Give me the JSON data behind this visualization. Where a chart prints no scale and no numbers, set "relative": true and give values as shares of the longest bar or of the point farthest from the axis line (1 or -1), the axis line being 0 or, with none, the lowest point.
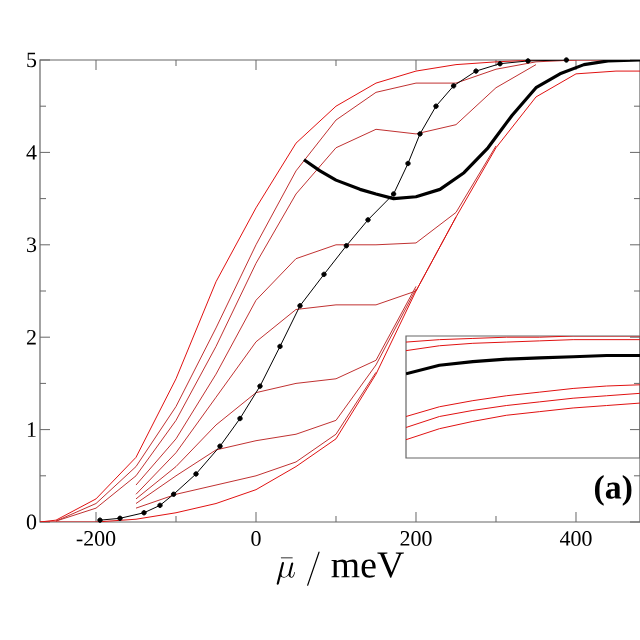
{
  "chart_data": [
    {
      "type": "line",
      "xlabel": "\\bar{\\mu}\\ /\\ \\mathrm{meV}",
      "xlim": [
        -270,
        480
      ],
      "ylim": [
        0,
        5
      ],
      "xticks": [
        -200,
        0,
        200,
        400
      ],
      "yticks": [
        0,
        1,
        2,
        3,
        4,
        5
      ],
      "x": [
        -270,
        -250,
        -200,
        -150,
        -100,
        -50,
        0,
        50,
        100,
        150,
        200,
        250,
        300,
        350,
        400,
        450,
        480
      ],
      "annotations": [
        "**(a)**"
      ],
      "series": [
        {
          "color": "#e01010",
          "values": [
            0,
            0.02,
            0.25,
            0.7,
            1.55,
            2.6,
            3.4,
            4.1,
            4.5,
            4.75,
            4.88,
            4.95,
            4.98,
            5,
            5,
            null,
            5
          ]
        },
        {
          "color": "#c03030",
          "values": [
            null,
            0.01,
            0.2,
            0.6,
            1.25,
            2.1,
            3.0,
            3.8,
            4.35,
            4.65,
            4.75,
            4.75,
            4.9,
            4.98,
            5,
            null,
            null
          ]
        },
        {
          "color": "#c03030",
          "values": [
            null,
            0.01,
            0.15,
            0.5,
            1.1,
            1.9,
            2.8,
            3.55,
            4.05,
            4.25,
            4.2,
            4.3,
            4.7,
            4.95,
            null,
            null,
            null
          ]
        },
        {
          "color": "#c03030",
          "values": [
            null,
            null,
            null,
            0.4,
            0.9,
            1.6,
            2.4,
            2.85,
            3.0,
            3.0,
            3.02,
            3.35,
            4.07,
            null,
            null,
            null,
            null
          ]
        },
        {
          "color": "#c03030",
          "values": [
            null,
            null,
            null,
            0.3,
            0.75,
            1.35,
            1.95,
            2.3,
            2.35,
            2.35,
            2.5,
            3.3,
            null,
            null,
            null,
            null,
            null
          ]
        },
        {
          "color": "#c03030",
          "values": [
            null,
            null,
            null,
            0.25,
            0.6,
            1.05,
            1.4,
            1.5,
            1.55,
            1.75,
            2.55,
            null,
            null,
            null,
            null,
            null,
            null
          ]
        },
        {
          "color": "#c03030",
          "values": [
            null,
            null,
            null,
            0.2,
            0.5,
            0.78,
            0.88,
            0.95,
            1.1,
            1.7,
            2.52,
            null,
            null,
            null,
            null,
            null,
            null
          ]
        },
        {
          "color": "#c03030",
          "values": [
            null,
            null,
            null,
            0.15,
            0.3,
            0.4,
            0.5,
            0.65,
            0.95,
            1.62,
            null,
            null,
            null,
            null,
            null,
            null,
            null
          ]
        },
        {
          "color": "#e01010",
          "values": [
            0,
            0,
            0,
            0.03,
            0.1,
            0.2,
            0.35,
            0.6,
            0.9,
            1.6,
            2.5,
            3.3,
            4.05,
            4.6,
            4.85,
            4.88,
            4.88
          ]
        },
        {
          "color": "#000000",
          "x": [
            60,
            80,
            100,
            130,
            150,
            172,
            200,
            230,
            260,
            290,
            320,
            350,
            380,
            410,
            440,
            480
          ],
          "values": [
            3.92,
            3.8,
            3.7,
            3.6,
            3.55,
            3.5,
            3.52,
            3.6,
            3.78,
            4.05,
            4.4,
            4.7,
            4.85,
            4.95,
            4.99,
            5.0
          ]
        },
        {
          "color": "#000000",
          "marker": "circle",
          "x": [
            -195,
            -170,
            -140,
            -120,
            -103,
            -75,
            -45,
            -20,
            5,
            30,
            55,
            85,
            113,
            140,
            172,
            190,
            205,
            225,
            247,
            275,
            305,
            340,
            388
          ],
          "values": [
            0.02,
            0.04,
            0.1,
            0.18,
            0.3,
            0.52,
            0.82,
            1.12,
            1.47,
            1.9,
            2.34,
            2.68,
            2.99,
            3.27,
            3.55,
            3.88,
            4.2,
            4.5,
            4.72,
            4.88,
            4.96,
            4.99,
            5.0
          ]
        }
      ]
    },
    {
      "type": "line",
      "relative": true,
      "categories": [
        null,
        null,
        null,
        null,
        null,
        null,
        null,
        null
      ],
      "series": [
        {
          "color": "#e01010",
          "values": [
            0.95,
            0.97,
            0.98,
            0.99,
            0.99,
            1,
            1,
            1
          ]
        },
        {
          "color": "#e01010",
          "values": [
            0.88,
            0.92,
            0.94,
            0.95,
            0.96,
            0.97,
            0.97,
            0.97
          ]
        },
        {
          "color": "#000000",
          "values": [
            0.69,
            0.76,
            0.79,
            0.81,
            0.82,
            0.83,
            0.84,
            0.84
          ]
        },
        {
          "color": "#e01010",
          "values": [
            0.34,
            0.42,
            0.47,
            0.51,
            0.54,
            0.57,
            0.59,
            0.6
          ]
        },
        {
          "color": "#e01010",
          "values": [
            0.25,
            0.34,
            0.39,
            0.43,
            0.46,
            0.49,
            0.51,
            0.53
          ]
        },
        {
          "color": "#e01010",
          "values": [
            0.15,
            0.24,
            0.3,
            0.35,
            0.38,
            0.41,
            0.43,
            0.45
          ]
        }
      ]
    }
  ]
}
